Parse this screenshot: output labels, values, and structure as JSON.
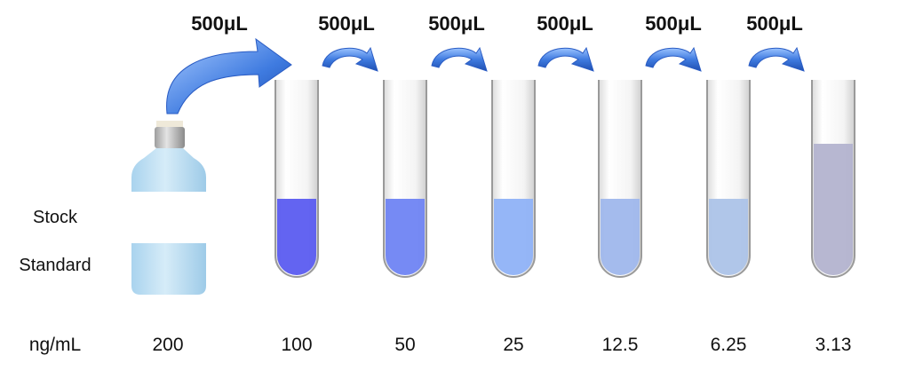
{
  "transfer_label": "500μL",
  "stock_label_line1": "Stock",
  "stock_label_line2": "Standard",
  "unit_label": "ng/mL",
  "stock_concentration": "200",
  "tubes": [
    {
      "concentration": "100",
      "liquid_color": "#5b5cf0"
    },
    {
      "concentration": "50",
      "liquid_color": "#6f84f3"
    },
    {
      "concentration": "25",
      "liquid_color": "#8fb2f7"
    },
    {
      "concentration": "12.5",
      "liquid_color": "#9fb7ec"
    },
    {
      "concentration": "6.25",
      "liquid_color": "#acc3e8"
    },
    {
      "concentration": "3.13",
      "liquid_color": "#b3b3cf"
    }
  ],
  "colors": {
    "arrow": "#3f7be0",
    "tube_outline": "#9a9a9a",
    "bottle_body": "#bfe0f3",
    "bottle_label": "#ffffff",
    "bottle_cap": "#c9c9c9"
  }
}
